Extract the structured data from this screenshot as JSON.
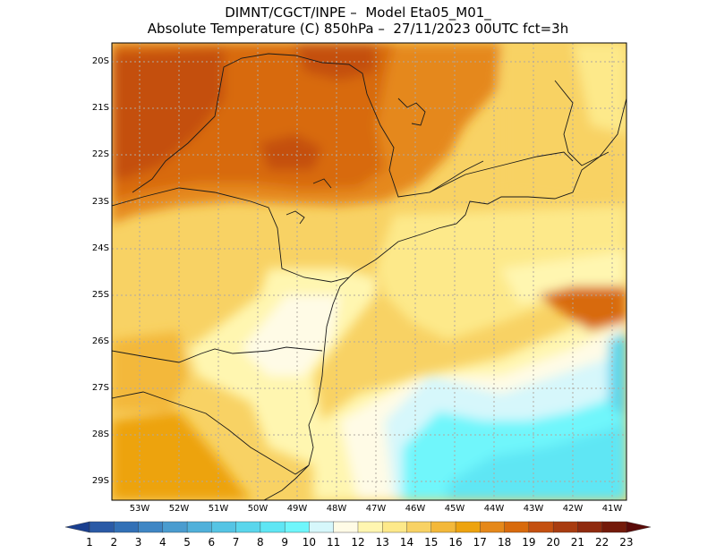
{
  "header": {
    "title_line1": "DIMNT/CGCT/INPE –  Model Eta05_M01_",
    "title_line2": "Absolute Temperature (C) 850hPa –  27/11/2023 00UTC fct=3h"
  },
  "map": {
    "lat_labels": [
      "20S",
      "21S",
      "22S",
      "23S",
      "24S",
      "25S",
      "26S",
      "27S",
      "28S",
      "29S"
    ],
    "lon_labels": [
      "53W",
      "52W",
      "51W",
      "50W",
      "49W",
      "48W",
      "47W",
      "46W",
      "45W",
      "44W",
      "43W",
      "42W",
      "41W"
    ]
  },
  "colorbar": {
    "labels": [
      "1",
      "2",
      "3",
      "4",
      "5",
      "6",
      "7",
      "8",
      "9",
      "10",
      "11",
      "12",
      "13",
      "14",
      "15",
      "16",
      "17",
      "18",
      "19",
      "20",
      "21",
      "22",
      "23"
    ],
    "colors": [
      "#1a3f8f",
      "#2a5aa6",
      "#3270b6",
      "#3f86c4",
      "#4a9ccf",
      "#50b0da",
      "#55c4e4",
      "#5ad6ec",
      "#5fe6f4",
      "#6ff6fb",
      "#d6f7fb",
      "#fffbe6",
      "#fff6b0",
      "#fde98a",
      "#f8d264",
      "#f3b83a",
      "#eda30f",
      "#e5881a",
      "#d86a0c",
      "#c45010",
      "#a83c10",
      "#8f2a0e",
      "#741a0a",
      "#5a0a08"
    ]
  }
}
